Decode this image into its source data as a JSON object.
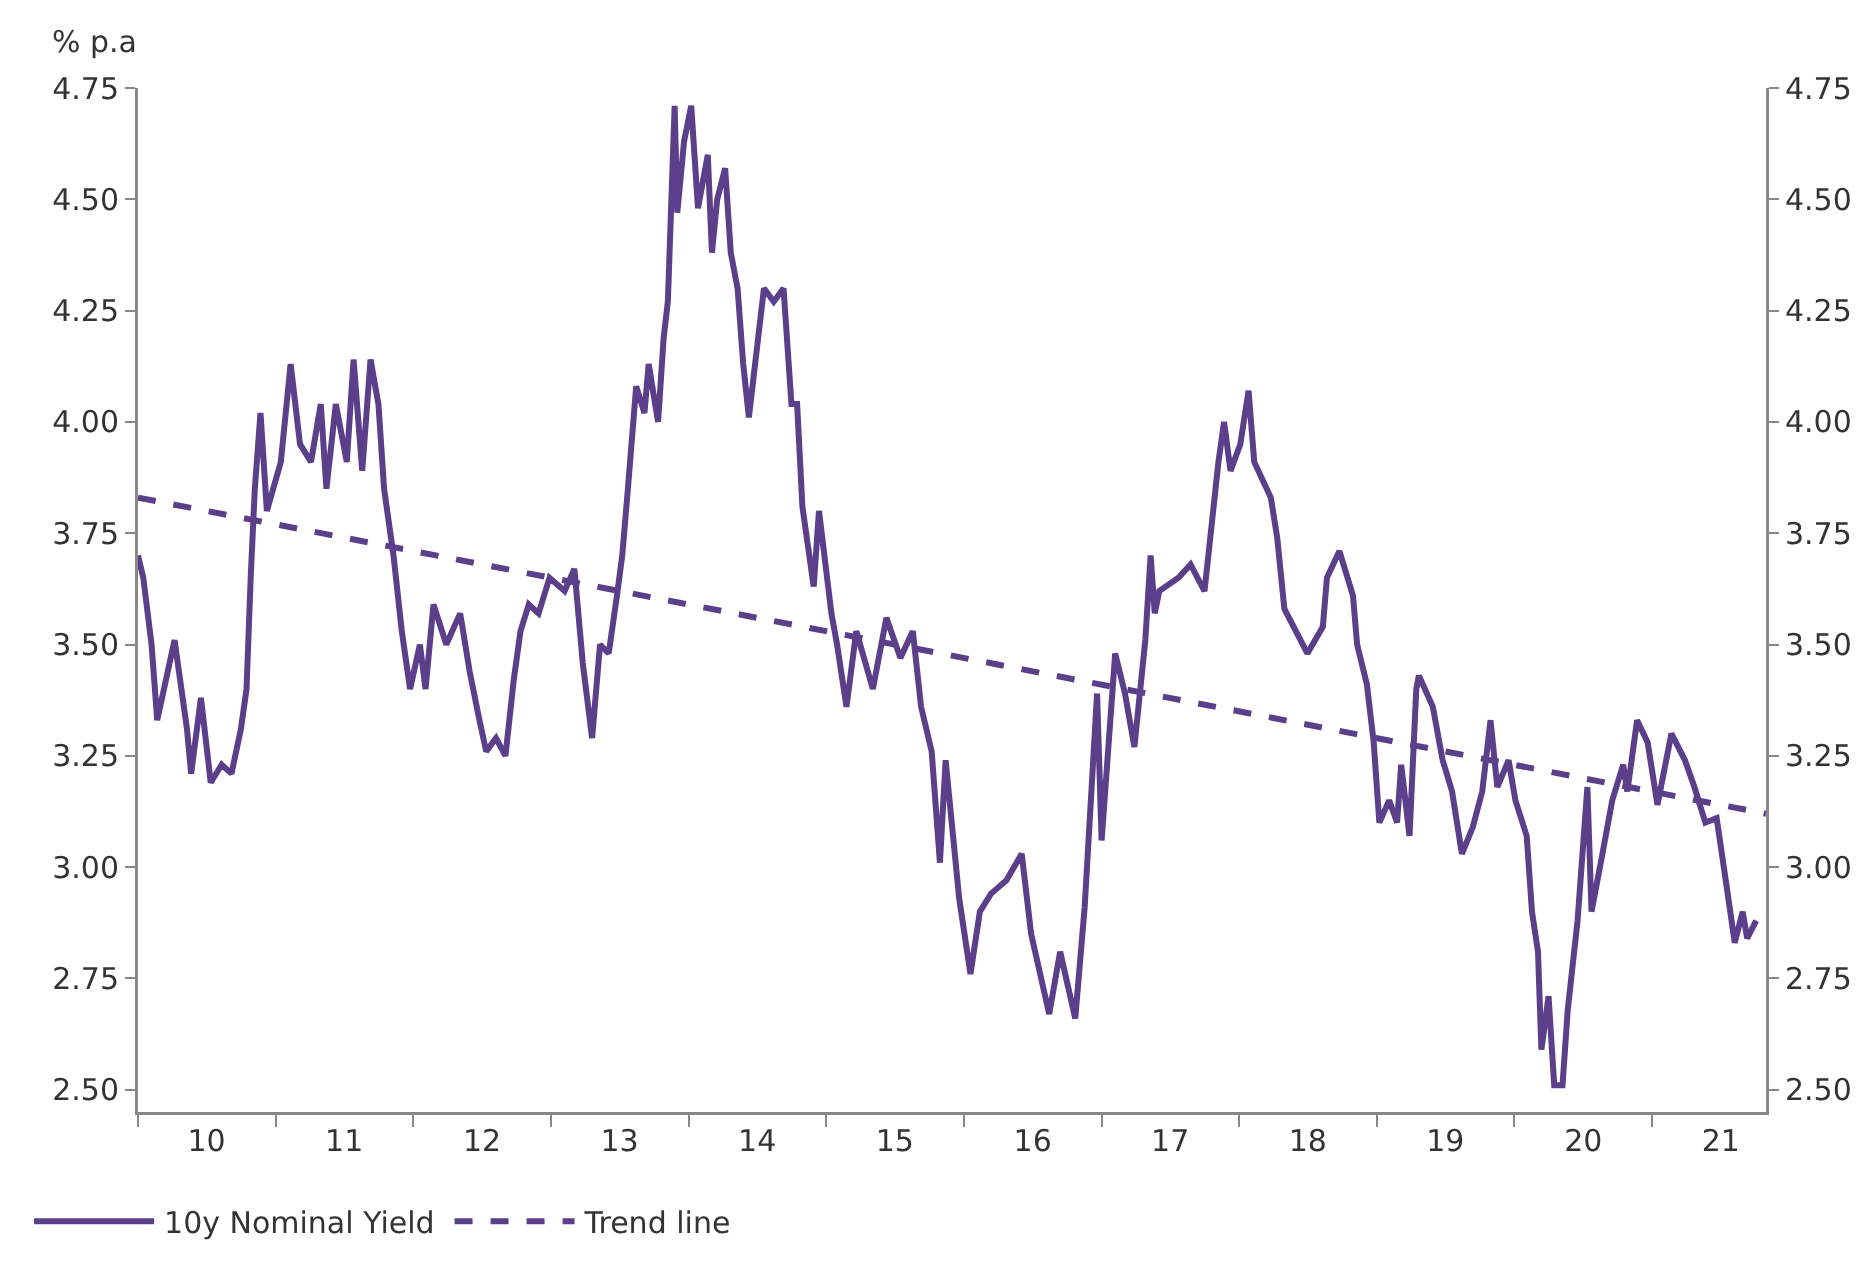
{
  "chart_data": {
    "type": "line",
    "ylabel": "% p.a",
    "legend": "bottom left",
    "grid": false,
    "xlim": [
      "2010-01-01",
      "2021-10-30"
    ],
    "xticks": [
      {
        "value": "2010-01-01",
        "label": null
      },
      {
        "value": "2011-01-01",
        "label": null
      },
      {
        "value": "2012-01-01",
        "label": null
      },
      {
        "value": "2013-01-01",
        "label": null
      },
      {
        "value": "2014-01-01",
        "label": null
      },
      {
        "value": "2015-01-01",
        "label": null
      },
      {
        "value": "2016-01-01",
        "label": null
      },
      {
        "value": "2017-01-01",
        "label": null
      },
      {
        "value": "2018-01-01",
        "label": null
      },
      {
        "value": "2019-01-01",
        "label": null
      },
      {
        "value": "2020-01-01",
        "label": null
      },
      {
        "value": "2021-01-01",
        "label": null
      },
      {
        "value": "2010-07-02",
        "label": "10"
      },
      {
        "value": "2011-07-02",
        "label": "11"
      },
      {
        "value": "2012-07-02",
        "label": "12"
      },
      {
        "value": "2013-07-02",
        "label": "13"
      },
      {
        "value": "2014-07-02",
        "label": "14"
      },
      {
        "value": "2015-07-02",
        "label": "15"
      },
      {
        "value": "2016-07-02",
        "label": "16"
      },
      {
        "value": "2017-07-02",
        "label": "17"
      },
      {
        "value": "2018-07-02",
        "label": "18"
      },
      {
        "value": "2019-07-02",
        "label": "19"
      },
      {
        "value": "2020-07-02",
        "label": "20"
      },
      {
        "value": "2021-07-02",
        "label": "21"
      }
    ],
    "ylim": [
      2.45,
      4.75
    ],
    "yticks": [
      {
        "value": 2.5,
        "label": "2.50"
      },
      {
        "value": 2.75,
        "label": "2.75"
      },
      {
        "value": 3.0,
        "label": "3.00"
      },
      {
        "value": 3.25,
        "label": "3.25"
      },
      {
        "value": 3.5,
        "label": "3.50"
      },
      {
        "value": 3.75,
        "label": "3.75"
      },
      {
        "value": 4.0,
        "label": "4.00"
      },
      {
        "value": 4.25,
        "label": "4.25"
      },
      {
        "value": 4.5,
        "label": "4.50"
      },
      {
        "value": 4.75,
        "label": "4.75"
      }
    ],
    "y2lim": [
      2.45,
      4.75
    ],
    "y2ticks": [
      {
        "value": 2.5,
        "label": "2.50"
      },
      {
        "value": 2.75,
        "label": "2.75"
      },
      {
        "value": 3.0,
        "label": "3.00"
      },
      {
        "value": 3.25,
        "label": "3.25"
      },
      {
        "value": 3.5,
        "label": "3.50"
      },
      {
        "value": 3.75,
        "label": "3.75"
      },
      {
        "value": 4.0,
        "label": "4.00"
      },
      {
        "value": 4.25,
        "label": "4.25"
      },
      {
        "value": 4.5,
        "label": "4.50"
      },
      {
        "value": 4.75,
        "label": "4.75"
      }
    ],
    "series": [
      {
        "name": "10y Nominal Yield",
        "line_style": "solid",
        "color": "#5c3f8a",
        "x": [
          "2010-01-01",
          "2010-01-15",
          "2010-02-06",
          "2010-02-21",
          "2010-04-08",
          "2010-05-11",
          "2010-05-22",
          "2010-06-17",
          "2010-07-13",
          "2010-08-11",
          "2010-09-06",
          "2010-10-01",
          "2010-10-16",
          "2010-10-27",
          "2010-11-07",
          "2010-11-22",
          "2010-12-09",
          "2011-01-15",
          "2011-02-10",
          "2011-03-07",
          "2011-04-05",
          "2011-05-01",
          "2011-05-16",
          "2011-06-10",
          "2011-07-09",
          "2011-07-27",
          "2011-08-19",
          "2011-09-10",
          "2011-10-01",
          "2011-10-16",
          "2011-11-10",
          "2011-12-02",
          "2011-12-24",
          "2012-01-19",
          "2012-02-03",
          "2012-02-24",
          "2012-03-29",
          "2012-05-05",
          "2012-05-30",
          "2012-06-25",
          "2012-07-13",
          "2012-08-08",
          "2012-09-02",
          "2012-09-24",
          "2012-10-12",
          "2012-11-03",
          "2012-11-29",
          "2012-12-28",
          "2013-02-06",
          "2013-03-04",
          "2013-03-26",
          "2013-04-20",
          "2013-05-11",
          "2013-06-03",
          "2013-06-25",
          "2013-07-09",
          "2013-07-24",
          "2013-08-15",
          "2013-09-06",
          "2013-09-17",
          "2013-10-12",
          "2013-10-27",
          "2013-11-07",
          "2013-11-25",
          "2013-12-02",
          "2013-12-20",
          "2014-01-08",
          "2014-01-26",
          "2014-02-21",
          "2014-03-04",
          "2014-03-18",
          "2014-04-08",
          "2014-04-23",
          "2014-05-11",
          "2014-05-26",
          "2014-06-10",
          "2014-06-21",
          "2014-07-20",
          "2014-08-15",
          "2014-09-10",
          "2014-10-01",
          "2014-10-16",
          "2014-10-30",
          "2014-11-29",
          "2014-12-13",
          "2015-01-15",
          "2015-01-30",
          "2015-02-24",
          "2015-03-22",
          "2015-05-05",
          "2015-06-10",
          "2015-07-17",
          "2015-08-19",
          "2015-09-10",
          "2015-10-08",
          "2015-10-30",
          "2015-11-14",
          "2015-12-20",
          "2016-01-19",
          "2016-02-13",
          "2016-03-13",
          "2016-04-23",
          "2016-06-03",
          "2016-06-28",
          "2016-08-15",
          "2016-09-13",
          "2016-10-23",
          "2016-11-17",
          "2016-12-20",
          "2017-01-01",
          "2017-02-06",
          "2017-03-04",
          "2017-03-29",
          "2017-04-27",
          "2017-05-11",
          "2017-05-22",
          "2017-06-03",
          "2017-07-24",
          "2017-08-25",
          "2017-10-01",
          "2017-11-07",
          "2017-11-22",
          "2017-12-09",
          "2018-01-04",
          "2018-01-26",
          "2018-02-10",
          "2018-03-26",
          "2018-04-12",
          "2018-05-01",
          "2018-07-01",
          "2018-08-11",
          "2018-08-22",
          "2018-09-24",
          "2018-10-30",
          "2018-11-10",
          "2018-12-06",
          "2018-12-24",
          "2019-01-08",
          "2019-02-03",
          "2019-02-24",
          "2019-03-07",
          "2019-03-29",
          "2019-04-16",
          "2019-04-23",
          "2019-05-30",
          "2019-06-25",
          "2019-07-20",
          "2019-08-15",
          "2019-09-13",
          "2019-10-08",
          "2019-10-30",
          "2019-11-17",
          "2019-12-17",
          "2020-01-04",
          "2020-02-03",
          "2020-02-17",
          "2020-03-04",
          "2020-03-13",
          "2020-04-01",
          "2020-04-16",
          "2020-05-08",
          "2020-05-22",
          "2020-06-17",
          "2020-07-13",
          "2020-07-24",
          "2020-08-22",
          "2020-09-17",
          "2020-10-16",
          "2020-10-27",
          "2020-11-22",
          "2020-12-20",
          "2021-01-15",
          "2021-02-21",
          "2021-03-29",
          "2021-04-23",
          "2021-05-22",
          "2021-06-21",
          "2021-07-17",
          "2021-08-08",
          "2021-08-29",
          "2021-09-10",
          "2021-10-04"
        ],
        "values": [
          3.7,
          3.65,
          3.5,
          3.33,
          3.51,
          3.31,
          3.21,
          3.38,
          3.19,
          3.23,
          3.21,
          3.31,
          3.4,
          3.65,
          3.85,
          4.02,
          3.8,
          3.91,
          4.13,
          3.95,
          3.91,
          4.04,
          3.85,
          4.04,
          3.91,
          4.14,
          3.89,
          4.14,
          4.04,
          3.85,
          3.7,
          3.53,
          3.4,
          3.5,
          3.4,
          3.59,
          3.5,
          3.57,
          3.44,
          3.33,
          3.26,
          3.29,
          3.25,
          3.42,
          3.53,
          3.59,
          3.57,
          3.65,
          3.62,
          3.67,
          3.46,
          3.29,
          3.5,
          3.48,
          3.61,
          3.7,
          3.85,
          4.08,
          4.02,
          4.13,
          4.0,
          4.19,
          4.27,
          4.71,
          4.47,
          4.63,
          4.71,
          4.48,
          4.6,
          4.38,
          4.5,
          4.57,
          4.38,
          4.3,
          4.13,
          4.01,
          4.09,
          4.3,
          4.27,
          4.3,
          4.04,
          4.04,
          3.81,
          3.63,
          3.8,
          3.57,
          3.5,
          3.36,
          3.53,
          3.4,
          3.56,
          3.47,
          3.53,
          3.36,
          3.26,
          3.01,
          3.24,
          2.93,
          2.76,
          2.9,
          2.94,
          2.97,
          3.03,
          2.85,
          2.67,
          2.81,
          2.66,
          2.91,
          3.39,
          3.06,
          3.48,
          3.39,
          3.27,
          3.51,
          3.7,
          3.57,
          3.62,
          3.65,
          3.68,
          3.62,
          3.91,
          4.0,
          3.89,
          3.95,
          4.07,
          3.91,
          3.83,
          3.74,
          3.58,
          3.48,
          3.54,
          3.65,
          3.71,
          3.61,
          3.5,
          3.41,
          3.28,
          3.1,
          3.15,
          3.1,
          3.23,
          3.07,
          3.4,
          3.43,
          3.36,
          3.24,
          3.17,
          3.03,
          3.09,
          3.17,
          3.33,
          3.18,
          3.24,
          3.15,
          3.07,
          2.9,
          2.81,
          2.59,
          2.71,
          2.51,
          2.51,
          2.68,
          2.88,
          3.18,
          2.9,
          3.03,
          3.15,
          3.23,
          3.17,
          3.33,
          3.28,
          3.14,
          3.3,
          3.24,
          3.18,
          3.1,
          3.11,
          2.96,
          2.83,
          2.9,
          2.84,
          2.88
        ]
      },
      {
        "name": "Trend line",
        "line_style": "dashed",
        "color": "#5c3f8a",
        "x": [
          "2010-01-01",
          "2021-10-30"
        ],
        "values": [
          3.83,
          3.12
        ]
      }
    ]
  }
}
